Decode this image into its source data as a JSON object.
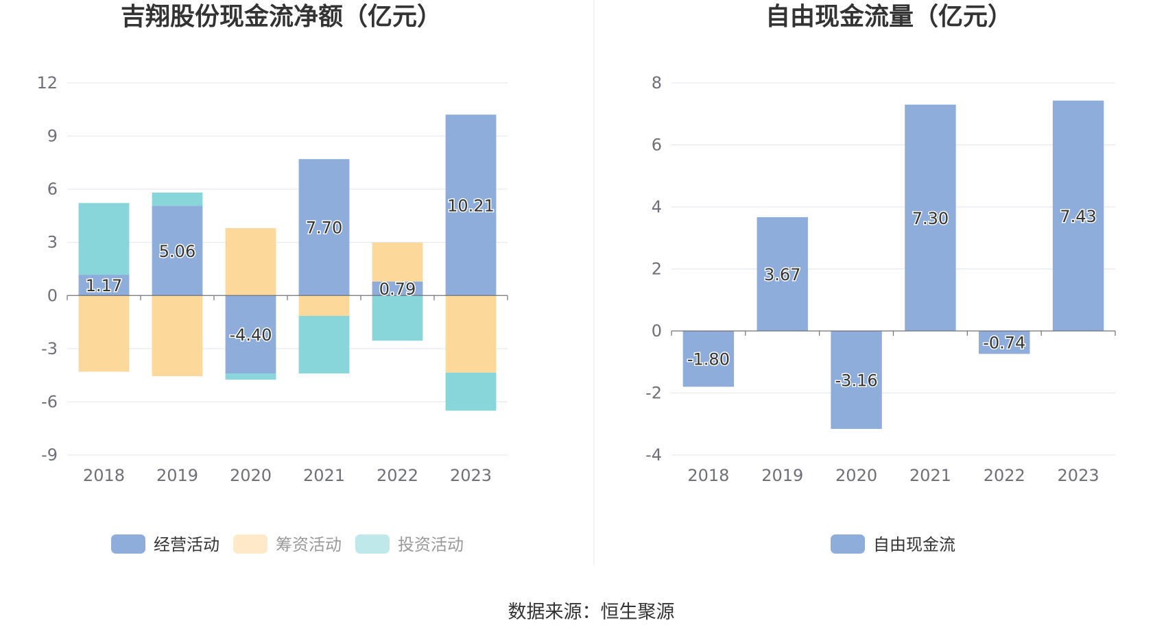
{
  "source": "数据来源：恒生聚源",
  "chart_data": [
    {
      "type": "bar",
      "stacked": true,
      "title": "吉翔股份现金流净额（亿元）",
      "categories": [
        "2018",
        "2019",
        "2020",
        "2021",
        "2022",
        "2023"
      ],
      "ylim": [
        -9,
        12
      ],
      "yticks": [
        12,
        9,
        6,
        3,
        0,
        -3,
        -6,
        -9
      ],
      "grid": true,
      "legend_position": "bottom",
      "series": [
        {
          "name": "经营活动",
          "color": "#8eaddb",
          "values": [
            1.17,
            5.06,
            -4.4,
            7.7,
            0.79,
            10.21
          ],
          "labels": [
            "1.17",
            "5.06",
            "-4.40",
            "7.70",
            "0.79",
            "10.21"
          ]
        },
        {
          "name": "筹资活动",
          "color": "#fdd89b",
          "values": [
            -4.3,
            -4.55,
            3.8,
            -1.15,
            2.2,
            -4.35
          ]
        },
        {
          "name": "投资活动",
          "color": "#88d6d9",
          "values": [
            4.05,
            0.75,
            -0.35,
            -3.25,
            -2.55,
            -2.15
          ]
        }
      ]
    },
    {
      "type": "bar",
      "title": "自由现金流量（亿元）",
      "categories": [
        "2018",
        "2019",
        "2020",
        "2021",
        "2022",
        "2023"
      ],
      "ylim": [
        -4,
        8
      ],
      "yticks": [
        8,
        6,
        4,
        2,
        0,
        -2,
        -4
      ],
      "grid": true,
      "legend_position": "bottom",
      "series": [
        {
          "name": "自由现金流",
          "color": "#8eaddb",
          "values": [
            -1.8,
            3.67,
            -3.16,
            7.3,
            -0.74,
            7.43
          ],
          "labels": [
            "-1.80",
            "3.67",
            "-3.16",
            "7.30",
            "-0.74",
            "7.43"
          ]
        }
      ]
    }
  ]
}
